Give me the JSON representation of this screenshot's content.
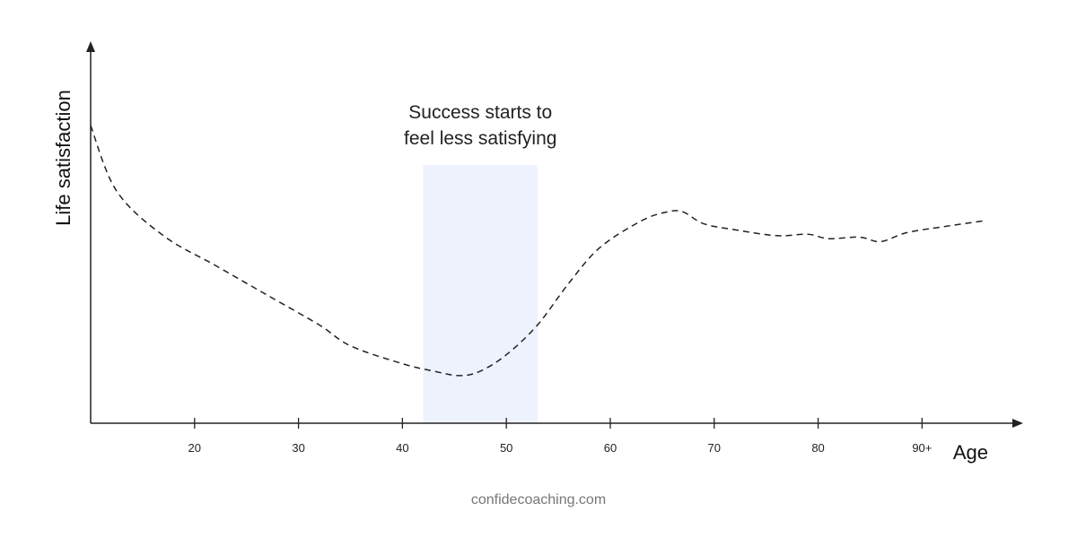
{
  "chart_data": {
    "type": "line",
    "title": "",
    "xlabel": "Age",
    "ylabel": "Life satisfaction",
    "xlim": [
      10,
      98
    ],
    "ylim": [
      0,
      10
    ],
    "grid": false,
    "x_ticks": [
      {
        "value": 20,
        "label": "20"
      },
      {
        "value": 30,
        "label": "30"
      },
      {
        "value": 40,
        "label": "40"
      },
      {
        "value": 50,
        "label": "50"
      },
      {
        "value": 60,
        "label": "60"
      },
      {
        "value": 70,
        "label": "70"
      },
      {
        "value": 80,
        "label": "80"
      },
      {
        "value": 90,
        "label": "90+"
      }
    ],
    "series": [
      {
        "line_style": "dashed",
        "color": "#222222",
        "x": [
          10,
          12.5,
          17,
          22,
          27,
          32,
          35,
          40,
          43,
          45.5,
          47.5,
          50,
          53,
          56,
          59,
          63,
          65.5,
          67,
          69,
          72,
          76,
          79,
          81,
          84,
          86,
          88.5,
          92,
          96
        ],
        "y": [
          10,
          7.8,
          6.3,
          5.3,
          4.3,
          3.3,
          2.6,
          2.0,
          1.75,
          1.6,
          1.75,
          2.3,
          3.3,
          4.7,
          5.9,
          6.8,
          7.1,
          7.1,
          6.7,
          6.5,
          6.3,
          6.35,
          6.2,
          6.25,
          6.1,
          6.4,
          6.6,
          6.8
        ]
      }
    ],
    "highlight_band": {
      "x_start": 42,
      "x_end": 53,
      "color": "#eef2fd",
      "label_lines": [
        "Success starts to",
        "feel less satisfying"
      ]
    }
  },
  "footer": {
    "text": "confidecoaching.com"
  }
}
